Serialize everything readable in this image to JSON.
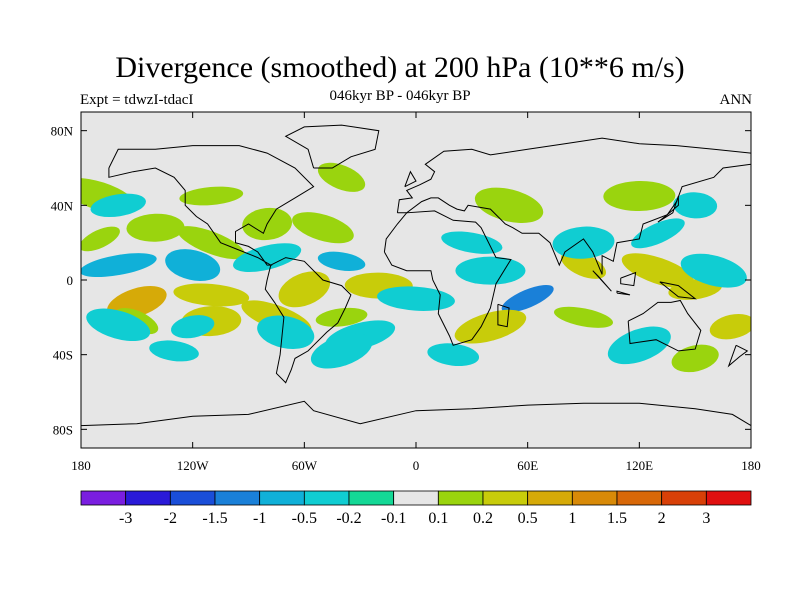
{
  "title": "Divergence (smoothed) at 200 hPa (10**6 m/s)",
  "subtitle_left": "Expt = tdwzI-tdacI",
  "subtitle_center": "046kyr BP - 046kyr BP",
  "subtitle_right": "ANN",
  "chart_data": {
    "type": "heatmap",
    "projection": "cylindrical-equidistant",
    "background_color": "#e6e6e6",
    "xlim": [
      -180,
      180
    ],
    "ylim": [
      -90,
      90
    ],
    "x_ticks": [
      -180,
      -120,
      -60,
      0,
      60,
      120,
      180
    ],
    "x_tick_labels": [
      "180",
      "120W",
      "60W",
      "0",
      "60E",
      "120E",
      "180"
    ],
    "y_ticks": [
      80,
      40,
      0,
      -40,
      -80
    ],
    "y_tick_labels": [
      "80N",
      "40N",
      "0",
      "40S",
      "80S"
    ],
    "colorbar": {
      "colors": [
        "#7a1ee0",
        "#2a1ad8",
        "#1a4ed8",
        "#1a80d8",
        "#10b0d8",
        "#10cdd2",
        "#14d896",
        "#e6e6e6",
        "#9ad40e",
        "#c8cc0a",
        "#d6aa08",
        "#d88a08",
        "#d86808",
        "#d84008",
        "#e01010"
      ],
      "labels": [
        "-3",
        "-2",
        "-1.5",
        "-1",
        "-0.5",
        "-0.2",
        "-0.1",
        "0.1",
        "0.2",
        "0.5",
        "1",
        "1.5",
        "2",
        "3"
      ]
    },
    "regions": [
      {
        "lon": -170,
        "lat": 22,
        "value": 0.2
      },
      {
        "lon": -140,
        "lat": 28,
        "value": 0.2
      },
      {
        "lon": -110,
        "lat": 20,
        "value": 0.2
      },
      {
        "lon": -80,
        "lat": 30,
        "value": 0.2
      },
      {
        "lon": -50,
        "lat": 28,
        "value": 0.2
      },
      {
        "lon": -160,
        "lat": 8,
        "value": -0.5
      },
      {
        "lon": -120,
        "lat": 8,
        "value": -0.5
      },
      {
        "lon": -80,
        "lat": 12,
        "value": -0.2
      },
      {
        "lon": -40,
        "lat": 10,
        "value": -0.5
      },
      {
        "lon": -150,
        "lat": -12,
        "value": 1
      },
      {
        "lon": -110,
        "lat": -8,
        "value": 0.5
      },
      {
        "lon": -60,
        "lat": -5,
        "value": 0.5
      },
      {
        "lon": -20,
        "lat": -3,
        "value": 0.5
      },
      {
        "lon": -150,
        "lat": -22,
        "value": 0.2
      },
      {
        "lon": -110,
        "lat": -22,
        "value": 0.5
      },
      {
        "lon": -75,
        "lat": -20,
        "value": 0.5
      },
      {
        "lon": -40,
        "lat": -20,
        "value": 0.2
      },
      {
        "lon": -160,
        "lat": -24,
        "value": -0.2
      },
      {
        "lon": -120,
        "lat": -25,
        "value": -0.2
      },
      {
        "lon": -70,
        "lat": -28,
        "value": -0.2
      },
      {
        "lon": -30,
        "lat": -30,
        "value": -0.2
      },
      {
        "lon": -130,
        "lat": -38,
        "value": -0.2
      },
      {
        "lon": -40,
        "lat": -38,
        "value": -0.2
      },
      {
        "lon": 0,
        "lat": -10,
        "value": -0.2
      },
      {
        "lon": 60,
        "lat": -10,
        "value": -1
      },
      {
        "lon": 40,
        "lat": 5,
        "value": -0.2
      },
      {
        "lon": 90,
        "lat": 8,
        "value": 0.5
      },
      {
        "lon": 90,
        "lat": 20,
        "value": -0.2
      },
      {
        "lon": 130,
        "lat": 5,
        "value": 0.5
      },
      {
        "lon": 150,
        "lat": -5,
        "value": 0.5
      },
      {
        "lon": 160,
        "lat": 5,
        "value": -0.2
      },
      {
        "lon": 170,
        "lat": -25,
        "value": 0.5
      },
      {
        "lon": 90,
        "lat": -20,
        "value": 0.2
      },
      {
        "lon": 40,
        "lat": -25,
        "value": 0.5
      },
      {
        "lon": 20,
        "lat": -40,
        "value": -0.2
      },
      {
        "lon": 120,
        "lat": -35,
        "value": -0.2
      },
      {
        "lon": 150,
        "lat": 40,
        "value": -0.2
      },
      {
        "lon": 130,
        "lat": 25,
        "value": -0.2
      },
      {
        "lon": 120,
        "lat": 45,
        "value": 0.2
      },
      {
        "lon": -40,
        "lat": 55,
        "value": 0.2
      },
      {
        "lon": -110,
        "lat": 45,
        "value": 0.2
      },
      {
        "lon": -170,
        "lat": 45,
        "value": 0.2
      },
      {
        "lon": -160,
        "lat": 40,
        "value": -0.2
      },
      {
        "lon": 50,
        "lat": 40,
        "value": 0.2
      },
      {
        "lon": 150,
        "lat": -42,
        "value": 0.2
      },
      {
        "lon": 30,
        "lat": 20,
        "value": -0.2
      }
    ]
  }
}
